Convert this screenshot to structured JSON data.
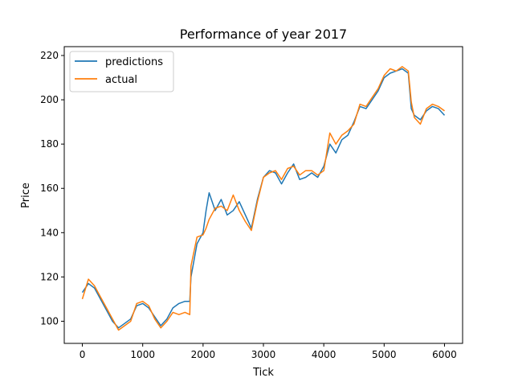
{
  "chart_data": {
    "type": "line",
    "title": "Performance of year 2017",
    "xlabel": "Tick",
    "ylabel": "Price",
    "xlim": [
      -300,
      6300
    ],
    "ylim": [
      90,
      224
    ],
    "xticks": [
      0,
      1000,
      2000,
      3000,
      4000,
      5000,
      6000
    ],
    "yticks": [
      100,
      120,
      140,
      160,
      180,
      200,
      220
    ],
    "grid": false,
    "legend_position": "top-left",
    "series": [
      {
        "name": "predictions",
        "color": "#1f77b4",
        "x": [
          0,
          100,
          200,
          300,
          400,
          500,
          600,
          700,
          800,
          900,
          1000,
          1100,
          1200,
          1300,
          1400,
          1500,
          1600,
          1700,
          1780,
          1800,
          1900,
          2000,
          2050,
          2100,
          2200,
          2300,
          2400,
          2500,
          2600,
          2700,
          2800,
          2900,
          3000,
          3100,
          3200,
          3300,
          3400,
          3500,
          3600,
          3700,
          3800,
          3900,
          4000,
          4100,
          4200,
          4300,
          4400,
          4500,
          4600,
          4700,
          4800,
          4900,
          5000,
          5100,
          5200,
          5300,
          5400,
          5450,
          5500,
          5600,
          5700,
          5800,
          5900,
          6000
        ],
        "y": [
          113,
          117,
          115,
          110,
          105,
          100,
          97,
          99,
          101,
          107,
          108,
          106,
          102,
          98,
          101,
          106,
          108,
          109,
          109,
          120,
          135,
          140,
          150,
          158,
          150,
          155,
          148,
          150,
          154,
          148,
          142,
          155,
          165,
          168,
          167,
          162,
          167,
          171,
          164,
          165,
          167,
          165,
          170,
          180,
          176,
          182,
          184,
          190,
          197,
          196,
          200,
          204,
          210,
          212,
          213,
          214,
          212,
          196,
          193,
          191,
          195,
          197,
          196,
          193
        ]
      },
      {
        "name": "actual",
        "color": "#ff7f0e",
        "x": [
          0,
          100,
          200,
          300,
          400,
          500,
          600,
          700,
          800,
          900,
          1000,
          1100,
          1200,
          1300,
          1400,
          1500,
          1600,
          1700,
          1780,
          1800,
          1900,
          2000,
          2050,
          2100,
          2200,
          2300,
          2400,
          2500,
          2600,
          2700,
          2800,
          2900,
          3000,
          3100,
          3200,
          3300,
          3400,
          3500,
          3600,
          3700,
          3800,
          3900,
          4000,
          4100,
          4200,
          4300,
          4400,
          4500,
          4600,
          4700,
          4800,
          4900,
          5000,
          5100,
          5200,
          5300,
          5400,
          5450,
          5500,
          5600,
          5700,
          5800,
          5900,
          6000
        ],
        "y": [
          110,
          119,
          116,
          111,
          106,
          101,
          96,
          98,
          100,
          108,
          109,
          107,
          101,
          97,
          100,
          104,
          103,
          104,
          103,
          125,
          138,
          139,
          142,
          146,
          151,
          152,
          150,
          157,
          150,
          145,
          141,
          154,
          165,
          167,
          168,
          164,
          169,
          170,
          166,
          168,
          168,
          166,
          168,
          185,
          180,
          184,
          186,
          189,
          198,
          197,
          201,
          205,
          211,
          214,
          213,
          215,
          213,
          199,
          192,
          189,
          196,
          198,
          197,
          195
        ]
      }
    ]
  }
}
